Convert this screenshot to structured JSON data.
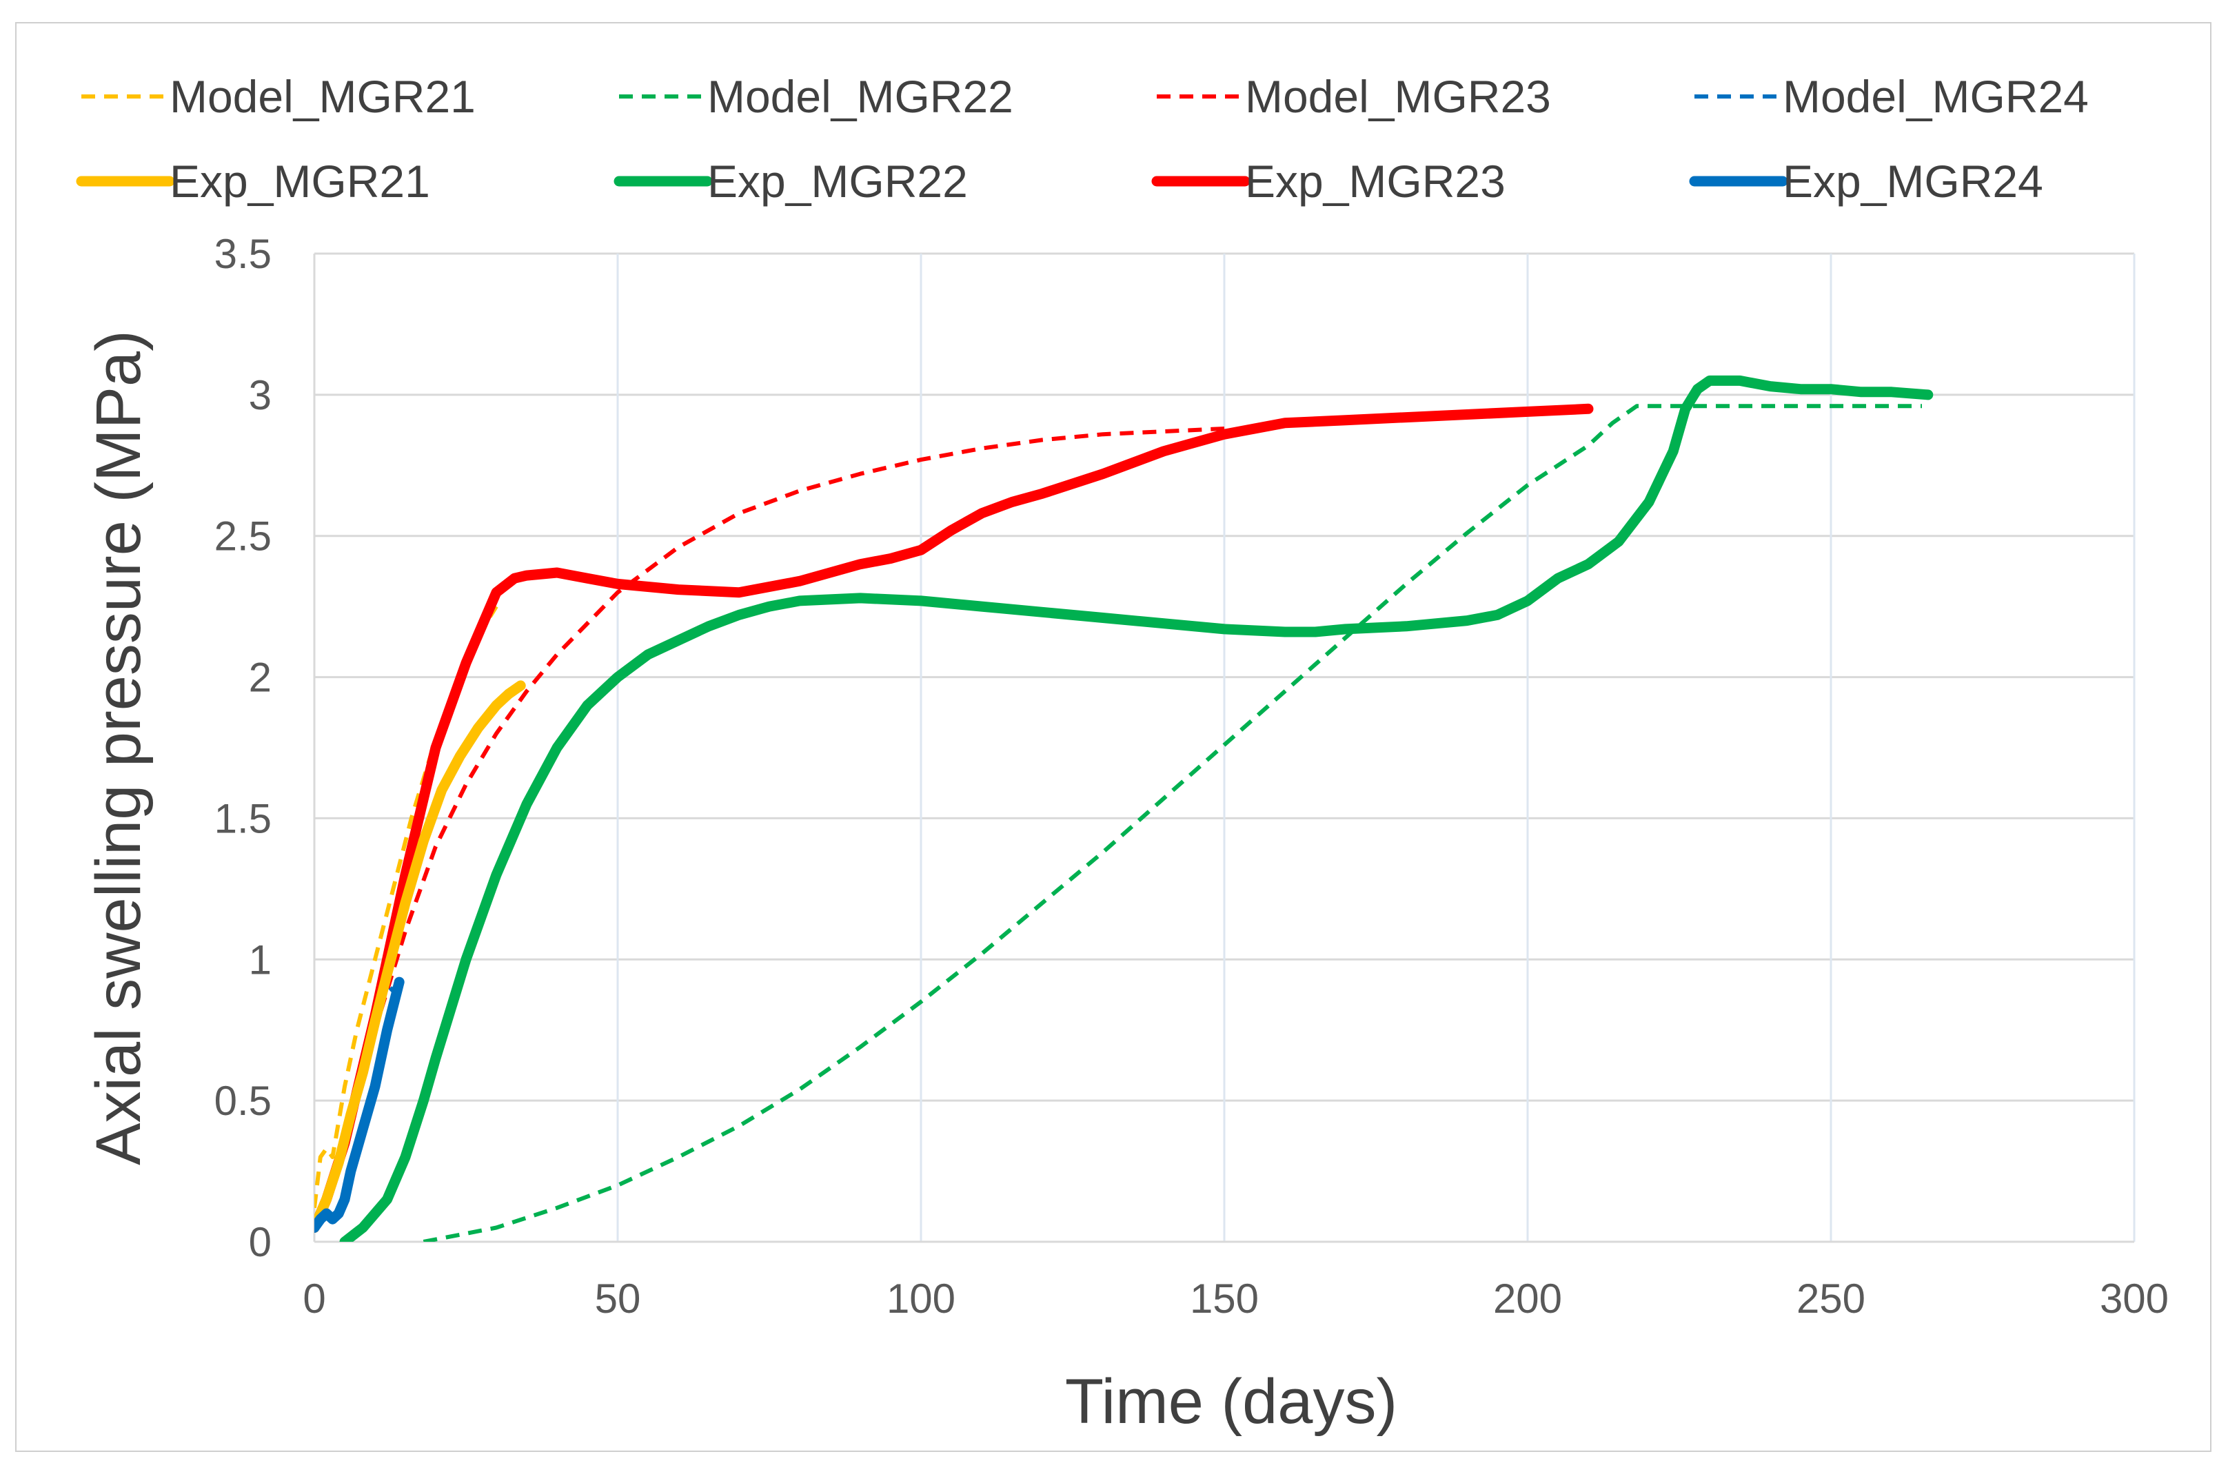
{
  "chart_data": {
    "type": "line",
    "title": "",
    "xlabel": "Time (days)",
    "ylabel": "Axial swelling pressure (MPa)",
    "xlim": [
      0,
      300
    ],
    "ylim": [
      0,
      3.5
    ],
    "xticks": [
      0,
      50,
      100,
      150,
      200,
      250,
      300
    ],
    "yticks": [
      0,
      0.5,
      1,
      1.5,
      2,
      2.5,
      3,
      3.5
    ],
    "xtick_labels": [
      "0",
      "50",
      "100",
      "150",
      "200",
      "250",
      "300"
    ],
    "ytick_labels": [
      "0",
      "0.5",
      "1",
      "1.5",
      "2",
      "2.5",
      "3",
      "3.5"
    ],
    "grid": true,
    "legend_position": "top",
    "series": [
      {
        "name": "Model_MGR21",
        "style": "dashed",
        "color": "#FFC000",
        "x": [
          0,
          1,
          2,
          3,
          5,
          7,
          10,
          13,
          16,
          20,
          24,
          28,
          30
        ],
        "y": [
          0.12,
          0.3,
          0.33,
          0.3,
          0.55,
          0.75,
          1.0,
          1.25,
          1.5,
          1.78,
          1.98,
          2.18,
          2.25
        ]
      },
      {
        "name": "Model_MGR22",
        "style": "dashed",
        "color": "#00B050",
        "x": [
          18,
          30,
          40,
          50,
          60,
          70,
          80,
          90,
          100,
          110,
          120,
          130,
          140,
          150,
          160,
          170,
          180,
          190,
          200,
          210,
          214,
          218,
          230,
          250,
          265
        ],
        "y": [
          0,
          0.05,
          0.12,
          0.2,
          0.3,
          0.41,
          0.54,
          0.69,
          0.85,
          1.02,
          1.2,
          1.38,
          1.57,
          1.76,
          1.95,
          2.14,
          2.33,
          2.51,
          2.68,
          2.82,
          2.9,
          2.96,
          2.96,
          2.96,
          2.96
        ]
      },
      {
        "name": "Model_MGR23",
        "style": "dashed",
        "color": "#FF0000",
        "x": [
          0,
          5,
          10,
          15,
          20,
          25,
          30,
          35,
          40,
          50,
          60,
          70,
          80,
          90,
          100,
          110,
          120,
          130,
          140,
          150
        ],
        "y": [
          0.05,
          0.35,
          0.75,
          1.1,
          1.4,
          1.62,
          1.8,
          1.95,
          2.08,
          2.3,
          2.46,
          2.58,
          2.66,
          2.72,
          2.77,
          2.81,
          2.84,
          2.86,
          2.87,
          2.88
        ]
      },
      {
        "name": "Model_MGR24",
        "style": "dashed",
        "color": "#0070C0",
        "x": [
          0,
          3,
          6,
          9,
          11,
          12,
          13
        ],
        "y": [
          0.05,
          0.2,
          0.45,
          0.7,
          0.85,
          0.88,
          0.9
        ]
      },
      {
        "name": "Exp_MGR21",
        "style": "solid",
        "color": "#FFC000",
        "x": [
          0,
          2,
          4,
          6,
          8,
          10,
          12,
          15,
          18,
          21,
          24,
          27,
          30,
          32,
          34
        ],
        "y": [
          0.05,
          0.15,
          0.28,
          0.45,
          0.6,
          0.78,
          0.95,
          1.2,
          1.42,
          1.6,
          1.72,
          1.82,
          1.9,
          1.94,
          1.97
        ]
      },
      {
        "name": "Exp_MGR22",
        "style": "solid",
        "color": "#00B050",
        "x": [
          5,
          8,
          10,
          12,
          15,
          18,
          20,
          25,
          30,
          35,
          40,
          45,
          50,
          55,
          60,
          65,
          70,
          75,
          80,
          90,
          100,
          110,
          120,
          130,
          140,
          150,
          160,
          165,
          170,
          180,
          190,
          195,
          200,
          205,
          210,
          215,
          220,
          224,
          226,
          228,
          230,
          235,
          240,
          245,
          250,
          255,
          260,
          266
        ],
        "y": [
          0,
          0.05,
          0.1,
          0.15,
          0.3,
          0.5,
          0.65,
          1.0,
          1.3,
          1.55,
          1.75,
          1.9,
          2.0,
          2.08,
          2.13,
          2.18,
          2.22,
          2.25,
          2.27,
          2.28,
          2.27,
          2.25,
          2.23,
          2.21,
          2.19,
          2.17,
          2.16,
          2.16,
          2.17,
          2.18,
          2.2,
          2.22,
          2.27,
          2.35,
          2.4,
          2.48,
          2.62,
          2.8,
          2.95,
          3.02,
          3.05,
          3.05,
          3.03,
          3.02,
          3.02,
          3.01,
          3.01,
          3.0
        ]
      },
      {
        "name": "Exp_MGR23",
        "style": "solid",
        "color": "#FF0000",
        "x": [
          0,
          2,
          5,
          10,
          15,
          20,
          25,
          28,
          30,
          33,
          35,
          40,
          45,
          50,
          55,
          60,
          70,
          80,
          90,
          95,
          100,
          105,
          110,
          115,
          120,
          130,
          140,
          150,
          155,
          160,
          170,
          180,
          190,
          200,
          210
        ],
        "y": [
          0.05,
          0.15,
          0.35,
          0.8,
          1.3,
          1.75,
          2.05,
          2.2,
          2.3,
          2.35,
          2.36,
          2.37,
          2.35,
          2.33,
          2.32,
          2.31,
          2.3,
          2.34,
          2.4,
          2.42,
          2.45,
          2.52,
          2.58,
          2.62,
          2.65,
          2.72,
          2.8,
          2.86,
          2.88,
          2.9,
          2.91,
          2.92,
          2.93,
          2.94,
          2.95
        ]
      },
      {
        "name": "Exp_MGR24",
        "style": "solid",
        "color": "#0070C0",
        "x": [
          0,
          1,
          2,
          3,
          4,
          5,
          6,
          8,
          10,
          12,
          14
        ],
        "y": [
          0.05,
          0.08,
          0.1,
          0.08,
          0.1,
          0.15,
          0.25,
          0.4,
          0.55,
          0.75,
          0.92
        ]
      }
    ]
  }
}
